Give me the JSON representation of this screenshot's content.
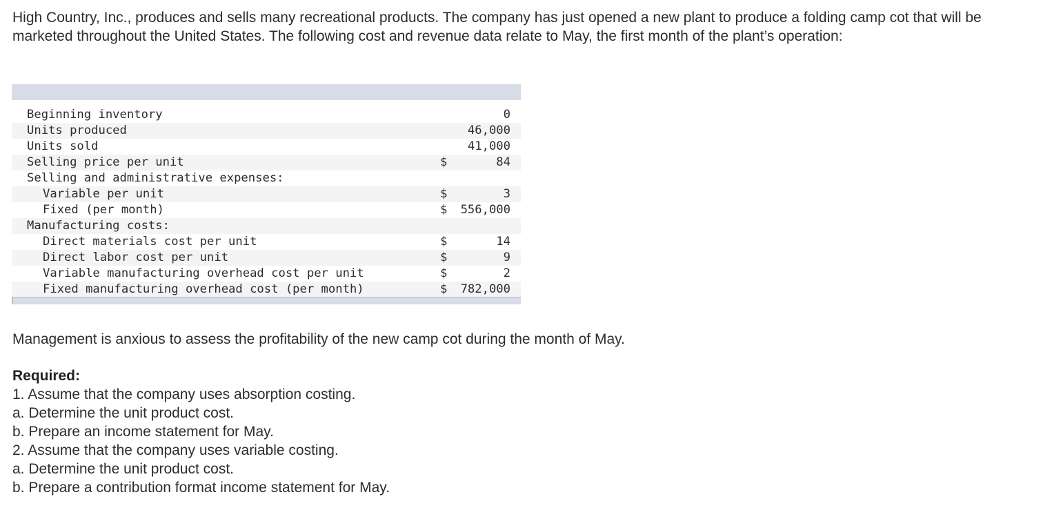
{
  "intro": "High Country, Inc., produces and sells many recreational products. The company has just opened a new plant to produce a folding camp cot that will be marketed throughout the United States. The following cost and revenue data relate to May, the first month of the plant’s operation:",
  "table": {
    "rows": [
      {
        "label": "Beginning inventory",
        "currency": "",
        "value": "0",
        "indent": false
      },
      {
        "label": "Units produced",
        "currency": "",
        "value": "46,000",
        "indent": false
      },
      {
        "label": "Units sold",
        "currency": "",
        "value": "41,000",
        "indent": false
      },
      {
        "label": "Selling price per unit",
        "currency": "$",
        "value": "84",
        "indent": false
      },
      {
        "label": "Selling and administrative expenses:",
        "currency": "",
        "value": "",
        "indent": false
      },
      {
        "label": "Variable per unit",
        "currency": "$",
        "value": "3",
        "indent": true
      },
      {
        "label": "Fixed (per month)",
        "currency": "$",
        "value": "556,000",
        "indent": true
      },
      {
        "label": "Manufacturing costs:",
        "currency": "",
        "value": "",
        "indent": false
      },
      {
        "label": "Direct materials cost per unit",
        "currency": "$",
        "value": "14",
        "indent": true
      },
      {
        "label": "Direct labor cost per unit",
        "currency": "$",
        "value": "9",
        "indent": true
      },
      {
        "label": "Variable manufacturing overhead cost per unit",
        "currency": "$",
        "value": "2",
        "indent": true
      },
      {
        "label": "Fixed manufacturing overhead cost (per month)",
        "currency": "$",
        "value": "782,000",
        "indent": true
      }
    ]
  },
  "management": "Management is anxious to assess the profitability of the new camp cot during the month of May.",
  "required": {
    "heading": "Required:",
    "items": [
      "1. Assume that the company uses absorption costing.",
      "a. Determine the unit product cost.",
      "b. Prepare an income statement for May.",
      "2. Assume that the company uses variable costing.",
      "a. Determine the unit product cost.",
      "b. Prepare a contribution format income statement for May."
    ]
  }
}
